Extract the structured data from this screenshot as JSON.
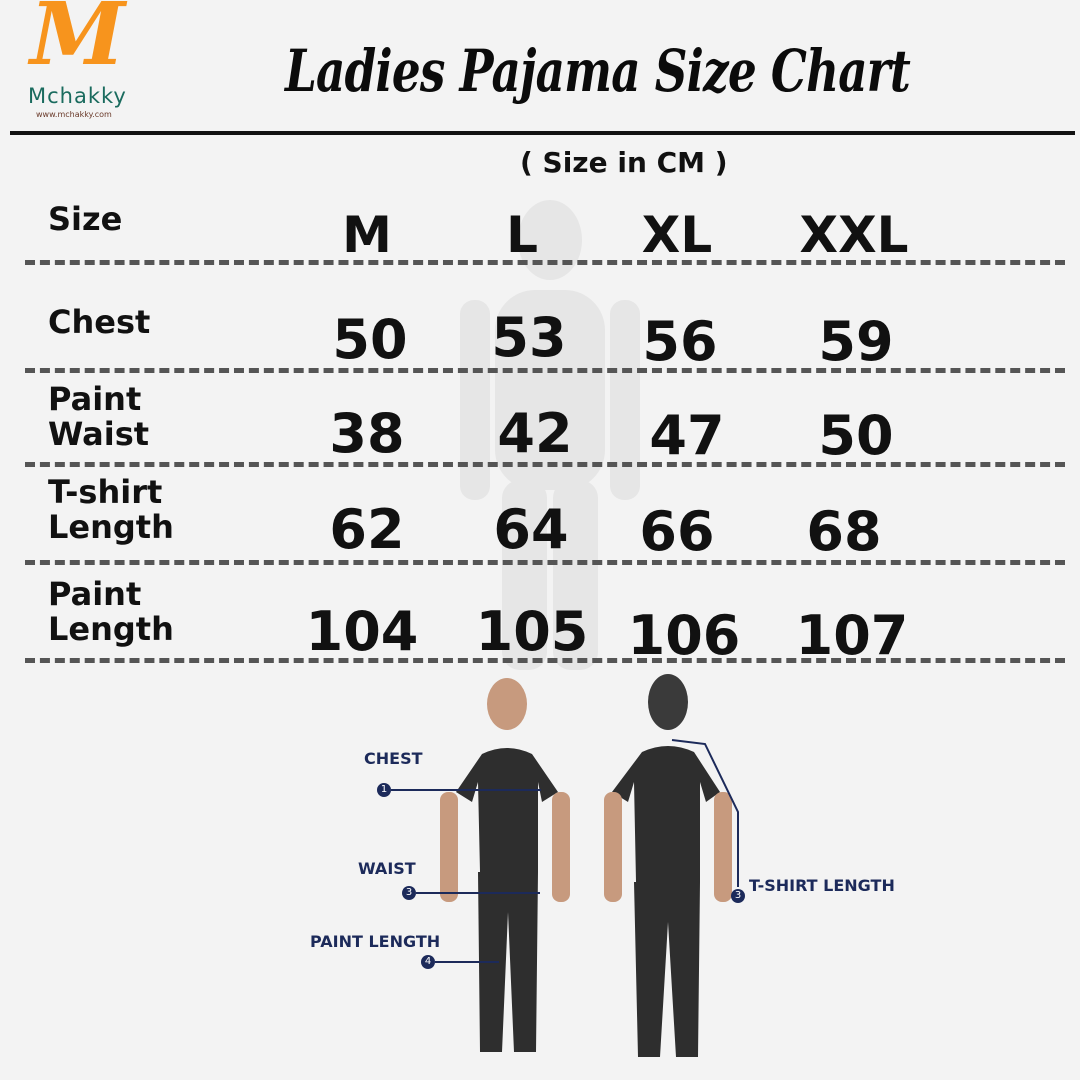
{
  "brand": {
    "logo_letter": "M",
    "name": "Mchakky",
    "url": "www.mchakky.com",
    "accent": "#f7941d",
    "name_color": "#1a6b5e"
  },
  "title": "Ladies Pajama Size Chart",
  "subtitle": "( Size in CM )",
  "chart_data": {
    "type": "table",
    "header_label": "Size",
    "columns": [
      "M",
      "L",
      "XL",
      "XXL"
    ],
    "rows": [
      {
        "label": "Chest",
        "values": [
          "50",
          "53",
          "56",
          "59"
        ]
      },
      {
        "label": "Paint Waist",
        "values": [
          "38",
          "42",
          "47",
          "50"
        ]
      },
      {
        "label": "T-shirt Length",
        "values": [
          "62",
          "64",
          "66",
          "68"
        ]
      },
      {
        "label": "Paint Length",
        "values": [
          "104",
          "105",
          "106",
          "107"
        ]
      }
    ]
  },
  "annotations": {
    "chest": "CHEST",
    "chest_num": "1",
    "waist": "WAIST",
    "waist_num": "3",
    "paint_length": "PAINT LENGTH",
    "paint_length_num": "4",
    "tshirt_length": "T-SHIRT LENGTH",
    "tshirt_length_num": "3",
    "color": "#1c2a5a"
  }
}
